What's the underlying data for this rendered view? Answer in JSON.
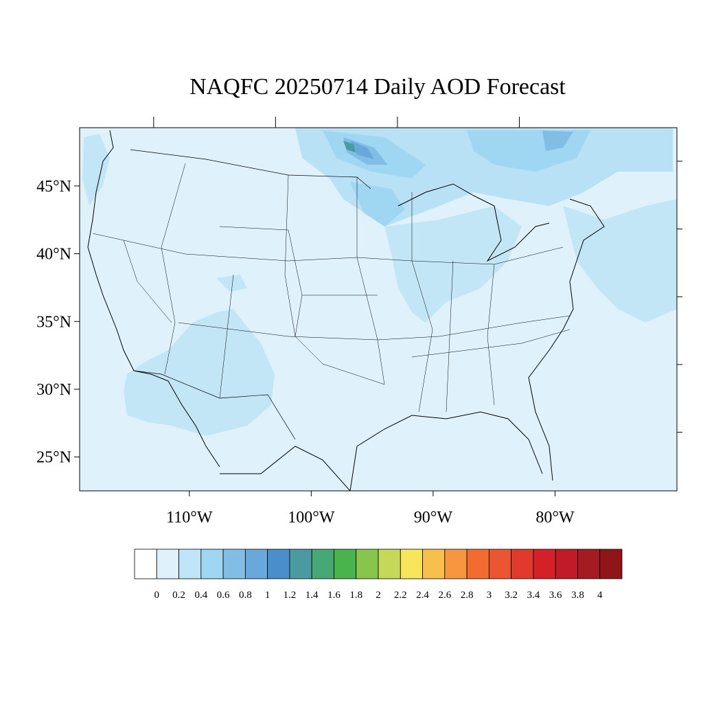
{
  "title": "NAQFC 20250714 Daily AOD Forecast",
  "map": {
    "lon_range": [
      -119,
      -70
    ],
    "lat_range": [
      22.5,
      49.3
    ],
    "lat_labels": [
      "45°N",
      "40°N",
      "35°N",
      "30°N",
      "25°N"
    ],
    "lat_values": [
      45,
      40,
      35,
      30,
      25
    ],
    "lon_labels": [
      "110°W",
      "100°W",
      "90°W",
      "80°W"
    ],
    "lon_values": [
      -110,
      -100,
      -90,
      -80
    ],
    "background_color": "#dff2fb"
  },
  "colorbar": {
    "labels": [
      "0",
      "0.2",
      "0.4",
      "0.6",
      "0.8",
      "1",
      "1.2",
      "1.4",
      "1.6",
      "1.8",
      "2",
      "2.2",
      "2.4",
      "2.6",
      "2.8",
      "3",
      "3.2",
      "3.4",
      "3.6",
      "3.8",
      "4"
    ],
    "colors": [
      "#ffffff",
      "#dff2fb",
      "#bfe6f8",
      "#9fd7f2",
      "#82bde6",
      "#69a8db",
      "#4a8fcc",
      "#4a9b9f",
      "#47a775",
      "#49b34c",
      "#87c54d",
      "#c6d85a",
      "#f8e55b",
      "#f7bf4b",
      "#f6963f",
      "#f26c31",
      "#ec5531",
      "#e13a2d",
      "#d42128",
      "#c01b26",
      "#a51b22",
      "#8e1619"
    ]
  }
}
